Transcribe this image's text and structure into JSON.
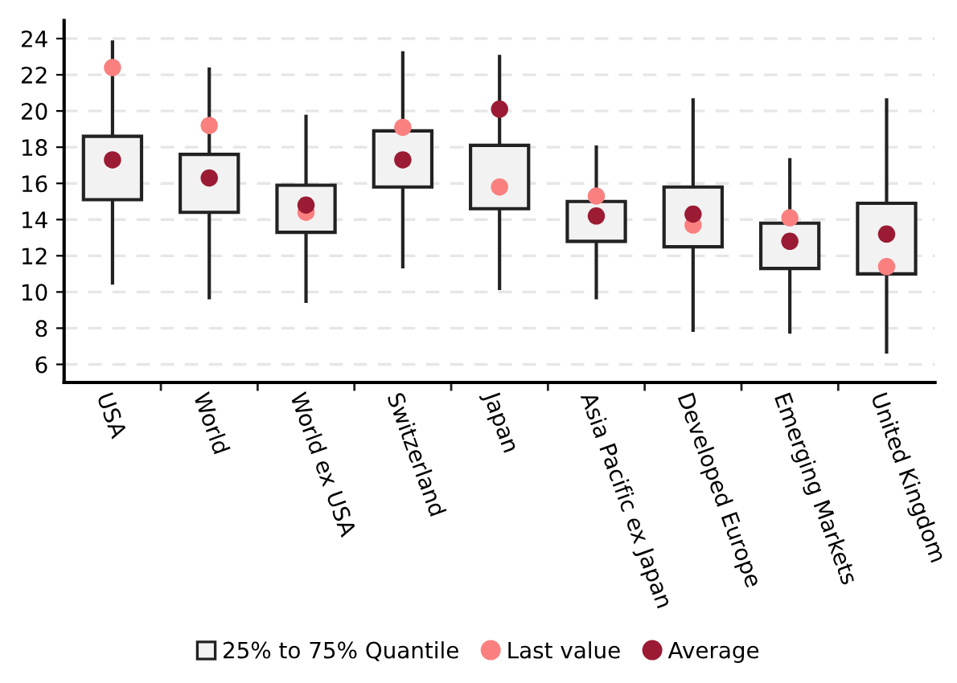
{
  "chart_data": {
    "type": "box",
    "categories": [
      "USA",
      "World",
      "World ex USA",
      "Switzerland",
      "Japan",
      "Asia Pacific ex Japan",
      "Developed Europe",
      "Emerging Markets",
      "United Kingdom"
    ],
    "series": [
      {
        "name": "25% to 75% Quantile",
        "color": "#f2f2f2",
        "boxes": [
          {
            "low": 10.4,
            "q1": 15.1,
            "q3": 18.6,
            "high": 23.9
          },
          {
            "low": 9.6,
            "q1": 14.4,
            "q3": 17.6,
            "high": 22.4
          },
          {
            "low": 9.4,
            "q1": 13.3,
            "q3": 15.9,
            "high": 19.8
          },
          {
            "low": 11.3,
            "q1": 15.8,
            "q3": 18.9,
            "high": 23.3
          },
          {
            "low": 10.1,
            "q1": 14.6,
            "q3": 18.1,
            "high": 23.1
          },
          {
            "low": 9.6,
            "q1": 12.8,
            "q3": 15.0,
            "high": 18.1
          },
          {
            "low": 7.8,
            "q1": 12.5,
            "q3": 15.8,
            "high": 20.7
          },
          {
            "low": 7.7,
            "q1": 11.3,
            "q3": 13.8,
            "high": 17.4
          },
          {
            "low": 6.6,
            "q1": 11.0,
            "q3": 14.9,
            "high": 20.7
          }
        ]
      },
      {
        "name": "Last value",
        "type": "scatter",
        "color": "#fa8080",
        "x": [
          "USA",
          "World",
          "World ex USA",
          "Switzerland",
          "Japan",
          "Asia Pacific ex Japan",
          "Developed Europe",
          "Emerging Markets",
          "United Kingdom"
        ],
        "values": [
          22.4,
          19.2,
          14.4,
          19.1,
          15.8,
          15.3,
          13.7,
          14.1,
          11.4
        ]
      },
      {
        "name": "Average",
        "type": "scatter",
        "color": "#9b1b34",
        "x": [
          "USA",
          "World",
          "World ex USA",
          "Switzerland",
          "Japan",
          "Asia Pacific ex Japan",
          "Developed Europe",
          "Emerging Markets",
          "United Kingdom"
        ],
        "values": [
          17.3,
          16.3,
          14.8,
          17.3,
          20.1,
          14.2,
          14.3,
          12.8,
          13.2
        ]
      }
    ],
    "ylim": [
      5,
      25
    ],
    "yticks": [
      6,
      8,
      10,
      12,
      14,
      16,
      18,
      20,
      22,
      24
    ],
    "grid": "y",
    "legend": "bottom",
    "marker": "circle"
  }
}
